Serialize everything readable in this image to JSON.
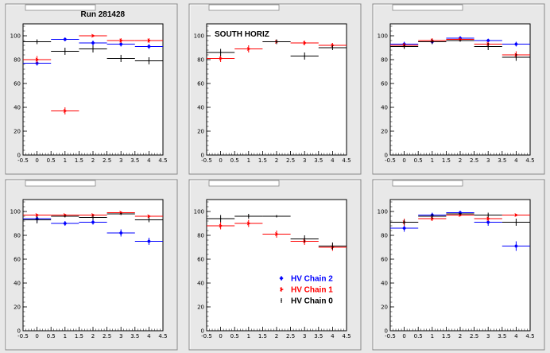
{
  "colors": {
    "chain2": "#0000ff",
    "chain1": "#ff0000",
    "chain0": "#000000",
    "canvas_bg": "#e8e8e8",
    "frame_bg": "#ffffff"
  },
  "legend": {
    "entries": [
      {
        "name": "HV Chain 2",
        "color": "#0000ff",
        "marker": "diamond"
      },
      {
        "name": "HV Chain 1",
        "color": "#ff0000",
        "marker": "arrow"
      },
      {
        "name": "HV Chain 0",
        "color": "#000000",
        "marker": "cross"
      }
    ]
  },
  "chart_data": [
    {
      "type": "scatter",
      "title": "",
      "label": "Run 281428",
      "xlim": [
        -0.5,
        4.5
      ],
      "ylim": [
        0,
        110
      ],
      "xticks": [
        "-0.5",
        "0",
        "0.5",
        "1",
        "1.5",
        "2",
        "2.5",
        "3",
        "3.5",
        "4",
        "4.5"
      ],
      "yticks": [
        "0",
        "20",
        "40",
        "60",
        "80",
        "100"
      ],
      "series": [
        {
          "name": "HV Chain 2",
          "points": [
            {
              "x": 0,
              "y": 77,
              "ey": 2
            },
            {
              "x": 1,
              "y": 97,
              "ey": 1
            },
            {
              "x": 2,
              "y": 94,
              "ey": 2
            },
            {
              "x": 3,
              "y": 93,
              "ey": 2
            },
            {
              "x": 4,
              "y": 91,
              "ey": 2
            }
          ]
        },
        {
          "name": "HV Chain 1",
          "points": [
            {
              "x": 0,
              "y": 80,
              "ey": 3
            },
            {
              "x": 1,
              "y": 37,
              "ey": 3
            },
            {
              "x": 2,
              "y": 100,
              "ey": 1
            },
            {
              "x": 3,
              "y": 96,
              "ey": 2
            },
            {
              "x": 4,
              "y": 96,
              "ey": 2
            }
          ]
        },
        {
          "name": "HV Chain 0",
          "points": [
            {
              "x": 0,
              "y": 95,
              "ey": 2
            },
            {
              "x": 1,
              "y": 87,
              "ey": 3
            },
            {
              "x": 2,
              "y": 89,
              "ey": 3
            },
            {
              "x": 3,
              "y": 81,
              "ey": 3
            },
            {
              "x": 4,
              "y": 79,
              "ey": 3
            }
          ]
        }
      ]
    },
    {
      "type": "scatter",
      "title": "",
      "label": "SOUTH HORIZ",
      "xlim": [
        -0.5,
        4.5
      ],
      "ylim": [
        0,
        110
      ],
      "xticks": [
        "-0.5",
        "0",
        "0.5",
        "1",
        "1.5",
        "2",
        "2.5",
        "3",
        "3.5",
        "4",
        "4.5"
      ],
      "yticks": [
        "0",
        "20",
        "40",
        "60",
        "80",
        "100"
      ],
      "series": [
        {
          "name": "HV Chain 1",
          "points": [
            {
              "x": 0,
              "y": 81,
              "ey": 3
            },
            {
              "x": 1,
              "y": 89,
              "ey": 3
            },
            {
              "x": 2,
              "y": 95,
              "ey": 2
            },
            {
              "x": 3,
              "y": 94,
              "ey": 2
            },
            {
              "x": 4,
              "y": 92,
              "ey": 2
            }
          ]
        },
        {
          "name": "HV Chain 0",
          "points": [
            {
              "x": 0,
              "y": 86,
              "ey": 3
            },
            {
              "x": 2,
              "y": 95,
              "ey": 2
            },
            {
              "x": 3,
              "y": 83,
              "ey": 3
            },
            {
              "x": 4,
              "y": 90,
              "ey": 2
            }
          ]
        }
      ]
    },
    {
      "type": "scatter",
      "title": "",
      "label": "",
      "xlim": [
        -0.5,
        4.5
      ],
      "ylim": [
        0,
        110
      ],
      "xticks": [
        "-0.5",
        "0",
        "0.5",
        "1",
        "1.5",
        "2",
        "2.5",
        "3",
        "3.5",
        "4",
        "4.5"
      ],
      "yticks": [
        "0",
        "20",
        "40",
        "60",
        "80",
        "100"
      ],
      "series": [
        {
          "name": "HV Chain 2",
          "points": [
            {
              "x": 0,
              "y": 93,
              "ey": 2
            },
            {
              "x": 1,
              "y": 95,
              "ey": 2
            },
            {
              "x": 2,
              "y": 98,
              "ey": 1
            },
            {
              "x": 3,
              "y": 96,
              "ey": 1
            },
            {
              "x": 4,
              "y": 93,
              "ey": 2
            }
          ]
        },
        {
          "name": "HV Chain 1",
          "points": [
            {
              "x": 0,
              "y": 92,
              "ey": 2
            },
            {
              "x": 1,
              "y": 96,
              "ey": 2
            },
            {
              "x": 2,
              "y": 97,
              "ey": 1
            },
            {
              "x": 3,
              "y": 93,
              "ey": 2
            },
            {
              "x": 4,
              "y": 84,
              "ey": 3
            }
          ]
        },
        {
          "name": "HV Chain 0",
          "points": [
            {
              "x": 0,
              "y": 91,
              "ey": 2
            },
            {
              "x": 1,
              "y": 95,
              "ey": 2
            },
            {
              "x": 2,
              "y": 96,
              "ey": 1
            },
            {
              "x": 3,
              "y": 91,
              "ey": 3
            },
            {
              "x": 4,
              "y": 82,
              "ey": 3
            }
          ]
        }
      ]
    },
    {
      "type": "scatter",
      "title": "",
      "label": "",
      "xlim": [
        -0.5,
        4.5
      ],
      "ylim": [
        0,
        110
      ],
      "xticks": [
        "-0.5",
        "0",
        "0.5",
        "1",
        "1.5",
        "2",
        "2.5",
        "3",
        "3.5",
        "4",
        "4.5"
      ],
      "yticks": [
        "0",
        "20",
        "40",
        "60",
        "80",
        "100"
      ],
      "series": [
        {
          "name": "HV Chain 2",
          "points": [
            {
              "x": 0,
              "y": 94,
              "ey": 3
            },
            {
              "x": 1,
              "y": 90,
              "ey": 2
            },
            {
              "x": 2,
              "y": 91,
              "ey": 2
            },
            {
              "x": 3,
              "y": 82,
              "ey": 3
            },
            {
              "x": 4,
              "y": 75,
              "ey": 3
            }
          ]
        },
        {
          "name": "HV Chain 1",
          "points": [
            {
              "x": 0,
              "y": 97,
              "ey": 1
            },
            {
              "x": 1,
              "y": 97,
              "ey": 1
            },
            {
              "x": 2,
              "y": 97,
              "ey": 1
            },
            {
              "x": 3,
              "y": 99,
              "ey": 1
            },
            {
              "x": 4,
              "y": 96,
              "ey": 1
            }
          ]
        },
        {
          "name": "HV Chain 0",
          "points": [
            {
              "x": 0,
              "y": 93,
              "ey": 3
            },
            {
              "x": 1,
              "y": 96,
              "ey": 1
            },
            {
              "x": 2,
              "y": 95,
              "ey": 2
            },
            {
              "x": 3,
              "y": 98,
              "ey": 1
            },
            {
              "x": 4,
              "y": 93,
              "ey": 2
            }
          ]
        }
      ]
    },
    {
      "type": "scatter",
      "title": "",
      "label": "",
      "xlim": [
        -0.5,
        4.5
      ],
      "ylim": [
        0,
        110
      ],
      "xticks": [
        "-0.5",
        "0",
        "0.5",
        "1",
        "1.5",
        "2",
        "2.5",
        "3",
        "3.5",
        "4",
        "4.5"
      ],
      "yticks": [
        "0",
        "20",
        "40",
        "60",
        "80",
        "100"
      ],
      "series": [
        {
          "name": "HV Chain 1",
          "points": [
            {
              "x": 0,
              "y": 88,
              "ey": 3
            },
            {
              "x": 1,
              "y": 90,
              "ey": 3
            },
            {
              "x": 2,
              "y": 81,
              "ey": 3
            },
            {
              "x": 3,
              "y": 75,
              "ey": 3
            },
            {
              "x": 4,
              "y": 70,
              "ey": 3
            }
          ]
        },
        {
          "name": "HV Chain 0",
          "points": [
            {
              "x": 0,
              "y": 94,
              "ey": 3
            },
            {
              "x": 1,
              "y": 96,
              "ey": 2
            },
            {
              "x": 2,
              "y": 96,
              "ey": 1
            },
            {
              "x": 3,
              "y": 77,
              "ey": 3
            },
            {
              "x": 4,
              "y": 71,
              "ey": 3
            }
          ]
        }
      ]
    },
    {
      "type": "scatter",
      "title": "",
      "label": "",
      "xlim": [
        -0.5,
        4.5
      ],
      "ylim": [
        0,
        110
      ],
      "xticks": [
        "-0.5",
        "0",
        "0.5",
        "1",
        "1.5",
        "2",
        "2.5",
        "3",
        "3.5",
        "4",
        "4.5"
      ],
      "yticks": [
        "0",
        "20",
        "40",
        "60",
        "80",
        "100"
      ],
      "series": [
        {
          "name": "HV Chain 2",
          "points": [
            {
              "x": 0,
              "y": 86,
              "ey": 3
            },
            {
              "x": 1,
              "y": 97,
              "ey": 2
            },
            {
              "x": 2,
              "y": 99,
              "ey": 1
            },
            {
              "x": 3,
              "y": 91,
              "ey": 3
            },
            {
              "x": 4,
              "y": 71,
              "ey": 4
            }
          ]
        },
        {
          "name": "HV Chain 1",
          "points": [
            {
              "x": 0,
              "y": 91,
              "ey": 3
            },
            {
              "x": 1,
              "y": 94,
              "ey": 2
            },
            {
              "x": 2,
              "y": 97,
              "ey": 1
            },
            {
              "x": 3,
              "y": 94,
              "ey": 2
            },
            {
              "x": 4,
              "y": 97,
              "ey": 1
            }
          ]
        },
        {
          "name": "HV Chain 0",
          "points": [
            {
              "x": 0,
              "y": 91,
              "ey": 2
            },
            {
              "x": 1,
              "y": 96,
              "ey": 2
            },
            {
              "x": 2,
              "y": 98,
              "ey": 1
            },
            {
              "x": 3,
              "y": 97,
              "ey": 2
            },
            {
              "x": 4,
              "y": 91,
              "ey": 3
            }
          ]
        }
      ]
    }
  ]
}
